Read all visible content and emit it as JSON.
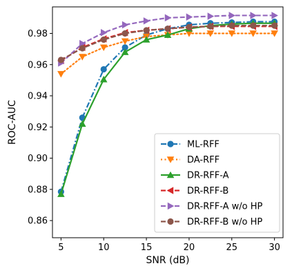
{
  "chart_data": {
    "type": "line",
    "title": "",
    "xlabel": "SNR (dB)",
    "ylabel": "ROC-AUC",
    "xlim": [
      4.0,
      31.0
    ],
    "ylim": [
      0.849,
      0.997
    ],
    "xticks": [
      5,
      10,
      15,
      20,
      25,
      30
    ],
    "yticks": [
      0.86,
      0.88,
      0.9,
      0.92,
      0.94,
      0.96,
      0.98
    ],
    "x": [
      5,
      7.5,
      10,
      12.5,
      15,
      17.5,
      20,
      22.5,
      25,
      27.5,
      30
    ],
    "grid": false,
    "legend_position": "lower-right",
    "series": [
      {
        "name": "ML-RFF",
        "color": "#1f77b4",
        "linestyle": "dashdot",
        "marker": "circle",
        "values": [
          0.8785,
          0.926,
          0.957,
          0.971,
          0.979,
          0.983,
          0.9855,
          0.9865,
          0.987,
          0.9875,
          0.9875
        ]
      },
      {
        "name": "DA-RFF",
        "color": "#ff7f0e",
        "linestyle": "dotted",
        "marker": "triangle-down",
        "values": [
          0.954,
          0.965,
          0.971,
          0.975,
          0.978,
          0.979,
          0.98,
          0.98,
          0.98,
          0.98,
          0.98
        ]
      },
      {
        "name": "DR-RFF-A",
        "color": "#2ca02c",
        "linestyle": "solid",
        "marker": "triangle-up",
        "values": [
          0.877,
          0.922,
          0.9505,
          0.968,
          0.976,
          0.979,
          0.983,
          0.985,
          0.986,
          0.9865,
          0.9865
        ]
      },
      {
        "name": "DR-RFF-B",
        "color": "#d62728",
        "linestyle": "dashed",
        "marker": "triangle-left",
        "values": [
          0.9625,
          0.971,
          0.9765,
          0.9805,
          0.982,
          0.983,
          0.984,
          0.9845,
          0.9845,
          0.9845,
          0.9845
        ]
      },
      {
        "name": "DR-RFF-A w/o HP",
        "color": "#9467bd",
        "linestyle": "dashed",
        "marker": "triangle-right",
        "values": [
          0.961,
          0.9735,
          0.9805,
          0.9855,
          0.988,
          0.99,
          0.9905,
          0.991,
          0.9915,
          0.9915,
          0.9915
        ]
      },
      {
        "name": "DR-RFF-B w/o HP",
        "color": "#8c564b",
        "linestyle": "dashed",
        "marker": "circle",
        "values": [
          0.963,
          0.9705,
          0.976,
          0.98,
          0.982,
          0.983,
          0.984,
          0.9845,
          0.985,
          0.985,
          0.985
        ]
      }
    ]
  }
}
